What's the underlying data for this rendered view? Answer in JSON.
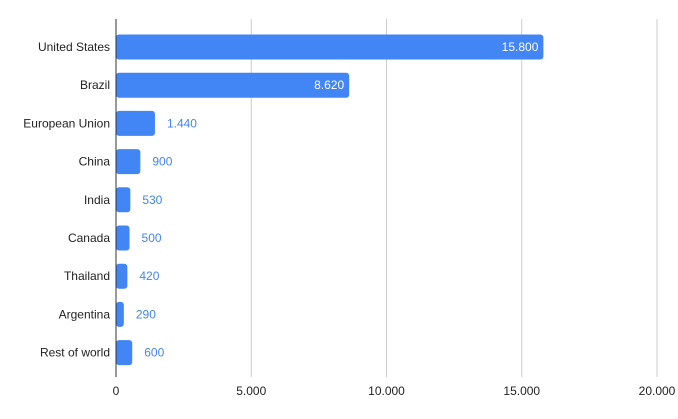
{
  "chart_data": {
    "type": "bar",
    "orientation": "horizontal",
    "categories": [
      "United States",
      "Brazil",
      "European Union",
      "China",
      "India",
      "Canada",
      "Thailand",
      "Argentina",
      "Rest of world"
    ],
    "values": [
      15800,
      8620,
      1440,
      900,
      530,
      500,
      420,
      290,
      600
    ],
    "value_labels": [
      "15.800",
      "8.620",
      "1.440",
      "900",
      "530",
      "500",
      "420",
      "290",
      "600"
    ],
    "x_ticks": [
      0,
      5000,
      10000,
      15000,
      20000
    ],
    "x_tick_labels": [
      "0",
      "5.000",
      "10.000",
      "15.000",
      "20.000"
    ],
    "xlim": [
      0,
      20000
    ],
    "grid": "vertical",
    "legend": "none",
    "title": "",
    "xlabel": "",
    "ylabel": "",
    "colors": {
      "bar": "#4285f4",
      "label_inside": "#ffffff",
      "label_outside": "#4285f4",
      "grid": "#cccccc",
      "axis": "#333333"
    }
  }
}
